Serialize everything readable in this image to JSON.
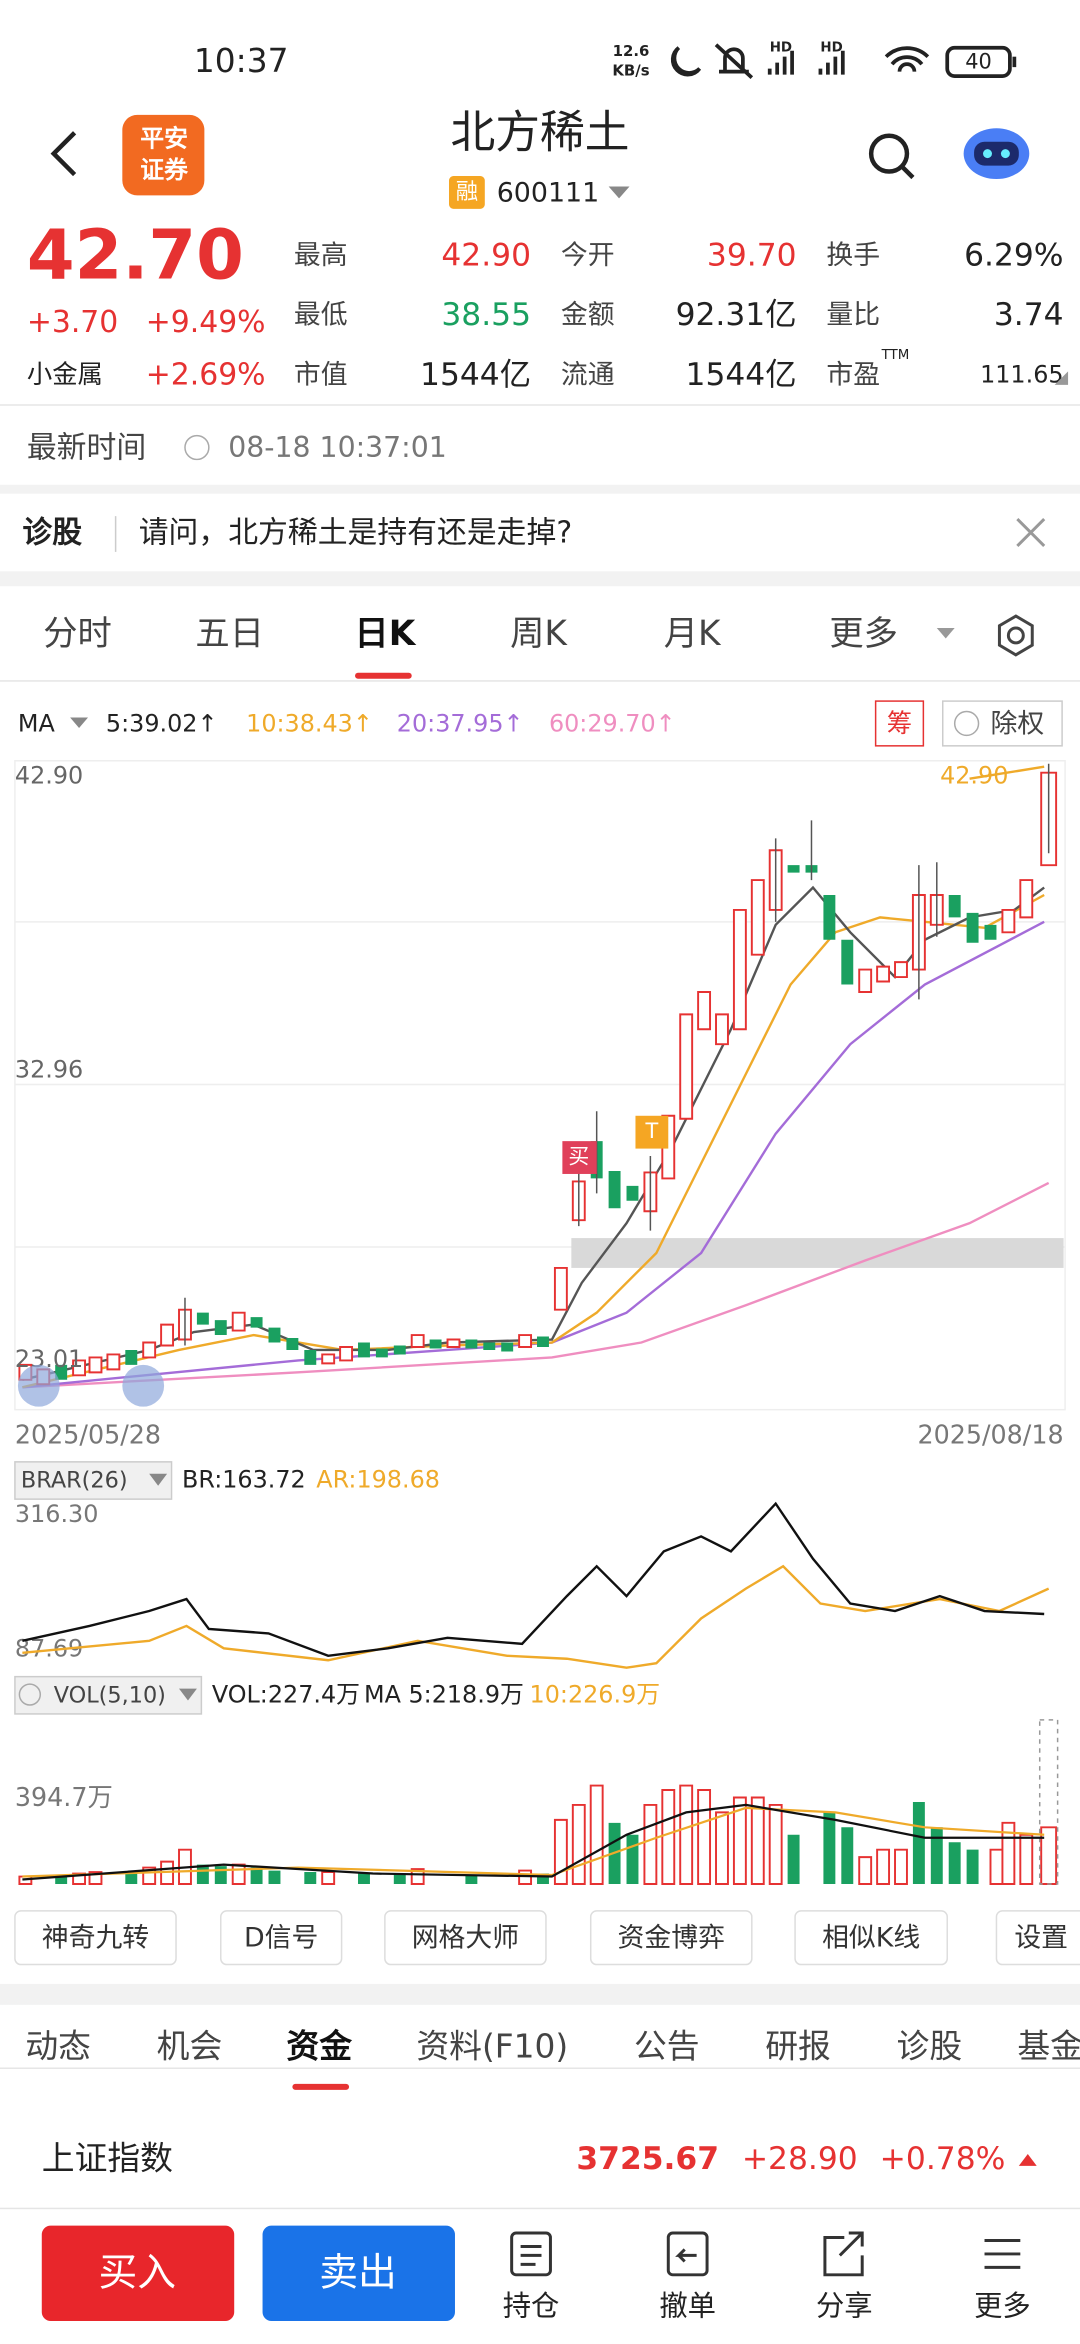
{
  "status": {
    "time": "10:37",
    "speed": "12.6",
    "speed_unit": "KB/s",
    "hd": "HD",
    "battery": "40"
  },
  "header": {
    "logo": [
      "平安",
      "证券"
    ],
    "title": "北方稀土",
    "badge": "融",
    "code": "600111"
  },
  "quote": {
    "price": "42.70",
    "change": "+3.70",
    "change_pct": "+9.49%",
    "sector": "小金属",
    "sector_pct": "+2.69%",
    "stats": [
      [
        [
          "最高",
          "42.90"
        ],
        [
          "今开",
          "39.70"
        ],
        [
          "换手",
          "6.29%"
        ]
      ],
      [
        [
          "最低",
          "38.55"
        ],
        [
          "金额",
          "92.31亿"
        ],
        [
          "量比",
          "3.74"
        ]
      ],
      [
        [
          "市值",
          "1544亿"
        ],
        [
          "流通",
          "1544亿"
        ],
        [
          "市盈",
          "111.65"
        ]
      ]
    ],
    "ttm": "TTM"
  },
  "latest": {
    "label": "最新时间",
    "time": "08-18 10:37:01"
  },
  "diagnosis": {
    "label": "诊股",
    "question": "请问，北方稀土是持有还是走掉?"
  },
  "tabs": [
    "分时",
    "五日",
    "日K",
    "周K",
    "月K",
    "更多"
  ],
  "ma": {
    "label": "MA",
    "values": [
      "5:39.02↑",
      "10:38.43↑",
      "20:37.95↑",
      "60:29.70↑"
    ],
    "chip": "筹",
    "adjust": "除权"
  },
  "kchart": {
    "price_labels": [
      "42.90",
      "32.96",
      "23.01"
    ],
    "high_label": "42.90",
    "buy_tag": "买",
    "t_tag": "T",
    "start_date": "2025/05/28",
    "end_date": "2025/08/18"
  },
  "brar": {
    "label": "BRAR(26)",
    "br": "BR:163.72",
    "ar": "AR:198.68",
    "top": "316.30",
    "bottom": "87.69"
  },
  "vol": {
    "label": "VOL(5,10)",
    "vol": "VOL:227.4万",
    "ma5": "MA 5:218.9万",
    "ma10": "10:226.9万",
    "top": "394.7万"
  },
  "tools": [
    "神奇九转",
    "D信号",
    "网格大师",
    "资金博弈",
    "相似K线",
    "设置"
  ],
  "sections": [
    "动态",
    "机会",
    "资金",
    "资料(F10)",
    "公告",
    "研报",
    "诊股",
    "基金"
  ],
  "index": {
    "name": "上证指数",
    "value": "3725.67",
    "change": "+28.90",
    "change_pct": "+0.78%"
  },
  "actions": {
    "buy": "买入",
    "sell": "卖出",
    "items": [
      "持仓",
      "撤单",
      "分享",
      "更多"
    ]
  }
}
